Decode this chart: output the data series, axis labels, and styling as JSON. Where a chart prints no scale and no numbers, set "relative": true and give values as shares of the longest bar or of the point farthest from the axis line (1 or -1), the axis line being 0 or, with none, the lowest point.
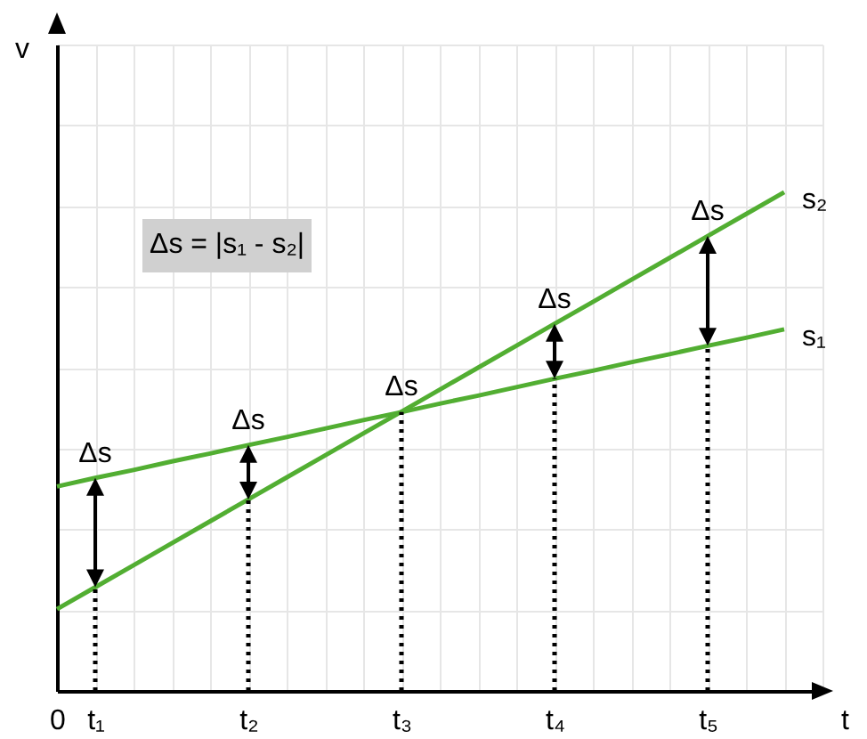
{
  "chart_data": {
    "type": "line",
    "relative": true,
    "xlabel": "t",
    "ylabel": "v",
    "categories": [
      "0",
      "t₁",
      null,
      null,
      null,
      "t₂",
      null,
      null,
      null,
      "t₃",
      null,
      null,
      null,
      "t₄",
      null,
      null,
      null,
      "t₅",
      null,
      null,
      null
    ],
    "series": [
      {
        "name": "s₁",
        "color": "#52ae32",
        "values": [
          0.41,
          0.427,
          0.443,
          0.46,
          0.476,
          0.493,
          0.509,
          0.526,
          0.543,
          0.559,
          0.576,
          0.592,
          0.609,
          0.626,
          0.642,
          0.659,
          0.675,
          0.692,
          0.708,
          0.725,
          null
        ]
      },
      {
        "name": "s₂",
        "color": "#52ae32",
        "values": [
          0.164,
          0.208,
          0.252,
          0.296,
          0.34,
          0.384,
          0.428,
          0.472,
          0.516,
          0.56,
          0.604,
          0.648,
          0.692,
          0.736,
          0.78,
          0.824,
          0.868,
          0.912,
          0.956,
          1,
          null
        ]
      }
    ],
    "ref_lines": [
      {
        "axis": "x",
        "value": "t₁",
        "line_style": "dotted",
        "color": "#000000"
      },
      {
        "axis": "x",
        "value": "t₂",
        "line_style": "dotted",
        "color": "#000000"
      },
      {
        "axis": "x",
        "value": "t₃",
        "line_style": "dotted",
        "color": "#000000"
      },
      {
        "axis": "x",
        "value": "t₄",
        "line_style": "dotted",
        "color": "#000000"
      },
      {
        "axis": "x",
        "value": "t₅",
        "line_style": "dotted",
        "color": "#000000"
      }
    ],
    "annotations": [
      {
        "text": "Δs",
        "x": "t₁",
        "y": 0.427
      },
      {
        "text": "Δs",
        "x": "t₂",
        "y": 0.493
      },
      {
        "text": "Δs",
        "x": "t₃",
        "y": 0.56
      },
      {
        "text": "Δs",
        "x": "t₄",
        "y": 0.736
      },
      {
        "text": "Δs",
        "x": "t₅",
        "y": 0.912
      },
      "Δs = |s₁ - s₂|"
    ],
    "grid": true,
    "line_style": "solid"
  }
}
